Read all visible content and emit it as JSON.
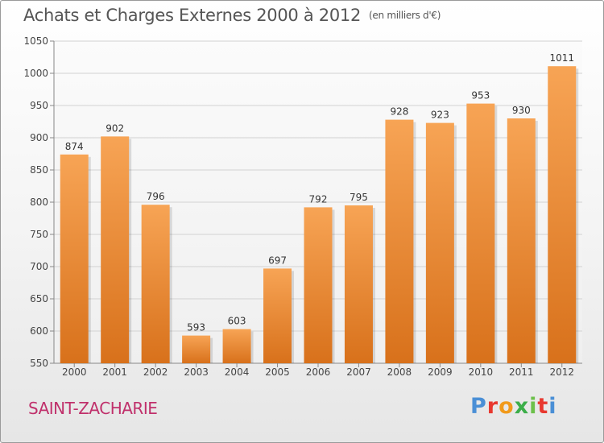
{
  "title": "Achats et Charges Externes 2000 à 2012",
  "unit_note": "(en milliers d'€)",
  "commune": "SAINT-ZACHARIE",
  "logo_text": "Proxiti",
  "colors": {
    "bar_top": "#f7a455",
    "bar_bottom": "#d8711b",
    "grid": "#cfcfcf",
    "commune": "#c0306b"
  },
  "chart_data": {
    "type": "bar",
    "title": "Achats et Charges Externes 2000 à 2012",
    "subtitle": "(en milliers d'€)",
    "categories": [
      "2000",
      "2001",
      "2002",
      "2003",
      "2004",
      "2005",
      "2006",
      "2007",
      "2008",
      "2009",
      "2010",
      "2011",
      "2012"
    ],
    "values": [
      874,
      902,
      796,
      593,
      603,
      697,
      792,
      795,
      928,
      923,
      953,
      930,
      1011
    ],
    "ylim": [
      550,
      1050
    ],
    "yticks": [
      550,
      600,
      650,
      700,
      750,
      800,
      850,
      900,
      950,
      1000,
      1050
    ],
    "grid": true,
    "data_labels": true
  }
}
